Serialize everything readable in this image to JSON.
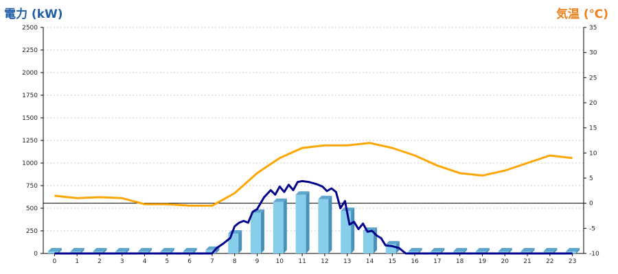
{
  "chart_data": {
    "type": "bar+line",
    "y_left_label": "電力 (kW)",
    "y_right_label": "気温 (℃)",
    "x_ticks": [
      "0",
      "1",
      "2",
      "3",
      "4",
      "5",
      "6",
      "7",
      "8",
      "9",
      "10",
      "11",
      "12",
      "13",
      "14",
      "15",
      "16",
      "17",
      "18",
      "19",
      "20",
      "21",
      "22",
      "23"
    ],
    "y_left_ticks": [
      "0",
      "250",
      "500",
      "750",
      "1000",
      "1250",
      "1500",
      "1750",
      "2000",
      "2250",
      "2500"
    ],
    "y_right_ticks": [
      "-10",
      "-5",
      "0",
      "5",
      "10",
      "15",
      "20",
      "25",
      "30",
      "35"
    ],
    "y_left_range": [
      0,
      2500
    ],
    "y_right_range": [
      -10,
      35
    ],
    "grid": true,
    "colors": {
      "bars": "#87ceeb",
      "bars_dark": "#4a90b8",
      "power_line": "#00008b",
      "temp_line": "#ffa500",
      "zero_line": "#000000",
      "left_label": "#1f5fa8",
      "right_label": "#f07f1a"
    },
    "series": [
      {
        "kind": "bar",
        "axis": "left",
        "values": [
          0,
          0,
          0,
          0,
          0,
          0,
          0,
          40,
          220,
          450,
          570,
          650,
          600,
          470,
          250,
          100,
          0,
          0,
          0,
          0,
          0,
          0,
          0,
          0
        ]
      },
      {
        "kind": "line",
        "axis": "left",
        "x": [
          0,
          1,
          2,
          3,
          4,
          5,
          6,
          7.0,
          7.2,
          7.5,
          7.8,
          8.0,
          8.2,
          8.4,
          8.6,
          8.8,
          9.0,
          9.3,
          9.6,
          9.8,
          10.0,
          10.2,
          10.4,
          10.6,
          10.8,
          11.0,
          11.3,
          11.6,
          11.9,
          12.1,
          12.3,
          12.5,
          12.7,
          12.9,
          13.1,
          13.3,
          13.5,
          13.7,
          13.9,
          14.1,
          14.3,
          14.5,
          14.7,
          15.0,
          15.3,
          15.6,
          16,
          17,
          18,
          19,
          20,
          21,
          22,
          23
        ],
        "values": [
          0,
          0,
          0,
          0,
          0,
          0,
          0,
          0,
          60,
          110,
          170,
          300,
          340,
          360,
          340,
          460,
          490,
          620,
          700,
          650,
          740,
          680,
          760,
          700,
          790,
          800,
          790,
          770,
          740,
          690,
          720,
          680,
          500,
          580,
          320,
          350,
          270,
          330,
          240,
          250,
          200,
          170,
          90,
          80,
          60,
          0,
          0,
          0,
          0,
          0,
          0,
          0,
          0,
          0
        ]
      },
      {
        "kind": "line",
        "axis": "right",
        "x": [
          0,
          1,
          2,
          3,
          4,
          5,
          6,
          7,
          8,
          9,
          10,
          11,
          12,
          13,
          14,
          15,
          16,
          17,
          18,
          19,
          20,
          21,
          22,
          23
        ],
        "values": [
          1.5,
          1.0,
          1.2,
          1.0,
          -0.2,
          -0.2,
          -0.5,
          -0.5,
          2.0,
          6.0,
          9.0,
          11.0,
          11.5,
          11.5,
          12.0,
          11.0,
          9.5,
          7.5,
          6.0,
          5.5,
          6.5,
          8.0,
          9.5,
          9.0
        ]
      }
    ]
  }
}
